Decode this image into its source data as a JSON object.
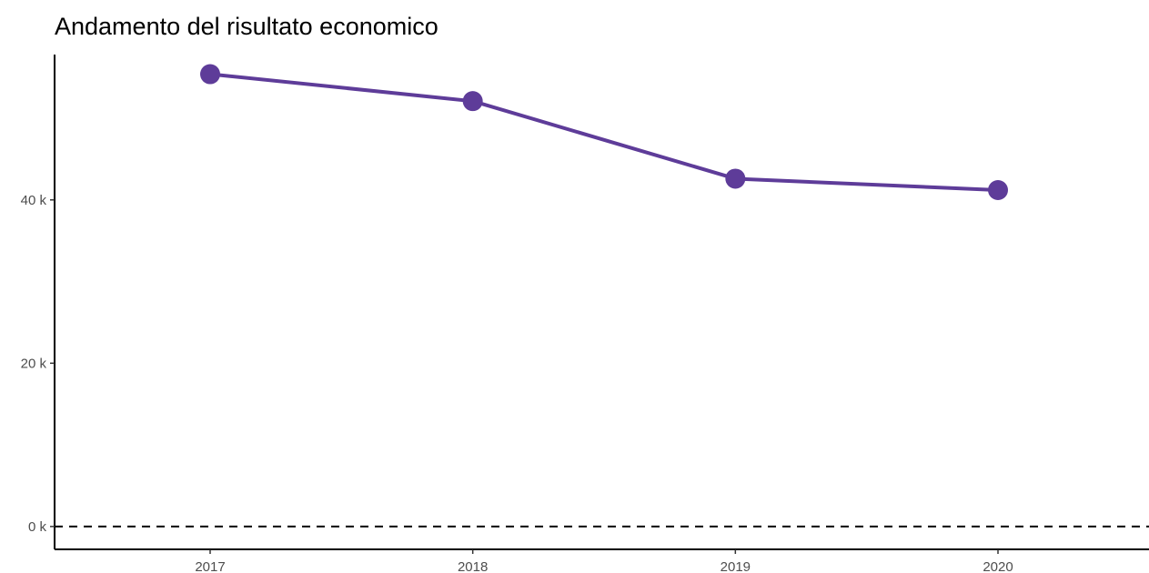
{
  "chart_data": {
    "type": "line",
    "title": "Andamento del risultato economico",
    "xlabel": "",
    "ylabel": "",
    "categories": [
      "2017",
      "2018",
      "2019",
      "2020"
    ],
    "series": [
      {
        "values": [
          55400,
          52100,
          42600,
          41200
        ],
        "color": "#5e3c99"
      }
    ],
    "ylim": [
      -2800,
      57800
    ],
    "yticks": [
      0,
      20000,
      40000
    ],
    "ytick_labels": [
      "0 k",
      "20 k",
      "40 k"
    ],
    "reference_line": {
      "value": 0,
      "style": "dashed",
      "color": "#000000"
    },
    "grid": false,
    "legend": "none"
  }
}
